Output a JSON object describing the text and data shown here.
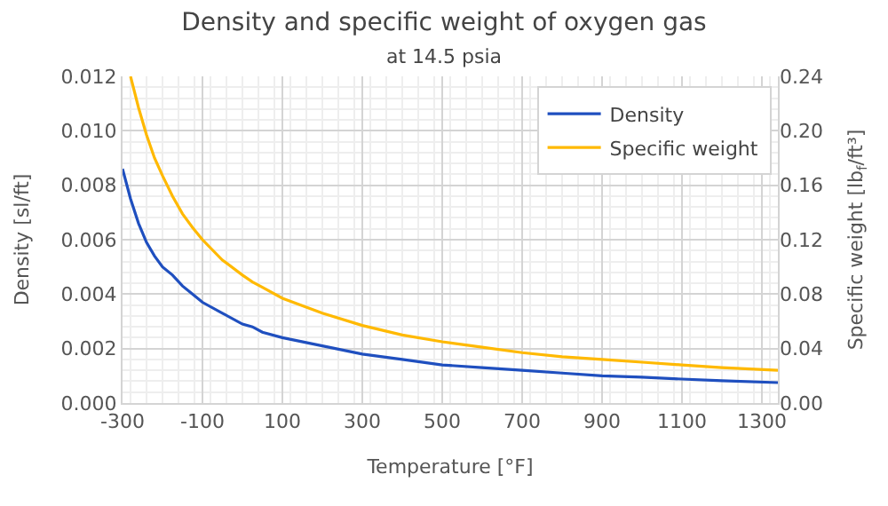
{
  "chart_data": {
    "type": "line",
    "title": "Density and specific weight of oxygen gas",
    "subtitle": "at 14.5 psia",
    "xlabel": "Temperature [°F]",
    "ylabel": "Density [sl/ft]",
    "y2label": "Specific weight [lb$_{f}$/ft³]",
    "xlim": [
      -300,
      1340
    ],
    "xticks": [
      -300,
      -100,
      100,
      300,
      500,
      700,
      900,
      1100,
      1300
    ],
    "ylim": [
      0,
      0.012
    ],
    "yticks": [
      {
        "value": 0,
        "label": "0.000"
      },
      {
        "value": 0.002,
        "label": "0.002"
      },
      {
        "value": 0.004,
        "label": "0.004"
      },
      {
        "value": 0.006,
        "label": "0.006"
      },
      {
        "value": 0.008,
        "label": "0.008"
      },
      {
        "value": 0.01,
        "label": "0.010"
      },
      {
        "value": 0.012,
        "label": "0.012"
      }
    ],
    "y2lim": [
      0,
      0.24
    ],
    "y2ticks": [
      {
        "value": 0,
        "label": "0.00"
      },
      {
        "value": 0.04,
        "label": "0.04"
      },
      {
        "value": 0.08,
        "label": "0.08"
      },
      {
        "value": 0.12,
        "label": "0.12"
      },
      {
        "value": 0.16,
        "label": "0.16"
      },
      {
        "value": 0.2,
        "label": "0.20"
      },
      {
        "value": 0.24,
        "label": "0.24"
      }
    ],
    "grid": true,
    "legend": "top right",
    "marker": "none",
    "line_style": "solid",
    "series": [
      {
        "name": "Density",
        "color": "#1f4fbf",
        "x": [
          -300,
          -280,
          -260,
          -240,
          -220,
          -200,
          -175,
          -150,
          -125,
          -100,
          -50,
          0,
          25,
          50,
          100,
          200,
          300,
          400,
          500,
          600,
          700,
          800,
          900,
          1000,
          1100,
          1200,
          1340
        ],
        "values": [
          0.0086,
          0.0075,
          0.0066,
          0.0059,
          0.0054,
          0.005,
          0.0047,
          0.0043,
          0.004,
          0.0037,
          0.0033,
          0.0029,
          0.0028,
          0.0026,
          0.0024,
          0.0021,
          0.0018,
          0.0016,
          0.0014,
          0.0013,
          0.0012,
          0.0011,
          0.001,
          0.00095,
          0.00088,
          0.00082,
          0.00075
        ]
      },
      {
        "name": "Specific weight",
        "color": "#ffb900",
        "axis": "y2",
        "x": [
          -280,
          -260,
          -240,
          -220,
          -200,
          -175,
          -150,
          -125,
          -100,
          -50,
          0,
          25,
          50,
          100,
          200,
          300,
          400,
          500,
          600,
          700,
          800,
          900,
          1000,
          1100,
          1200,
          1340
        ],
        "values": [
          0.24,
          0.217,
          0.197,
          0.18,
          0.167,
          0.152,
          0.139,
          0.129,
          0.12,
          0.105,
          0.094,
          0.089,
          0.085,
          0.077,
          0.066,
          0.057,
          0.05,
          0.045,
          0.041,
          0.037,
          0.034,
          0.032,
          0.03,
          0.028,
          0.026,
          0.024
        ]
      }
    ]
  }
}
